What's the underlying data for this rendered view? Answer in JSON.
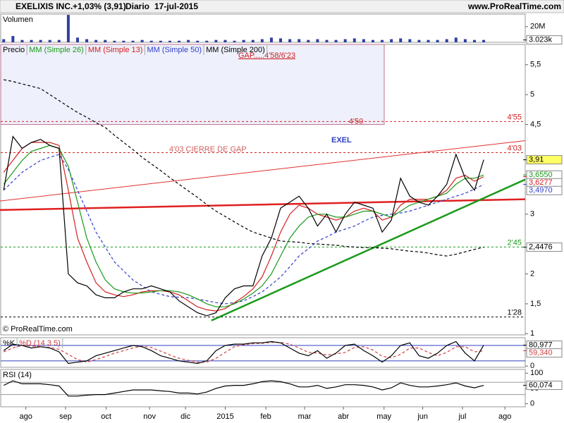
{
  "header": {
    "title": "EXELIXIS INC.",
    "change": "+1,03% (3,91)",
    "period": "Diario",
    "date": "17-jul-2015",
    "site": "www.ProRealTime.com"
  },
  "chart_data": [
    {
      "type": "bar",
      "title": "Volumen",
      "color": "#3040a0",
      "xlim": [
        -0.4,
        56.5
      ],
      "ylim": [
        0,
        36000000
      ],
      "yticks": [
        {
          "value": 20000000,
          "label": "20M"
        }
      ],
      "values": [
        4000000,
        8000000,
        3000000,
        3000000,
        3000000,
        3000000,
        3000000,
        35000000,
        6000000,
        4000000,
        3000000,
        3000000,
        2000000,
        2000000,
        2000000,
        3000000,
        2000000,
        2000000,
        2000000,
        2000000,
        3000000,
        2000000,
        2000000,
        3000000,
        3000000,
        2000000,
        3000000,
        3000000,
        4000000,
        6000000,
        5000000,
        4000000,
        4000000,
        3000000,
        4000000,
        3000000,
        3000000,
        4000000,
        5000000,
        4000000,
        3000000,
        3000000,
        4000000,
        5000000,
        4000000,
        3000000,
        3000000,
        3000000,
        4000000,
        6000000,
        4000000,
        3000000,
        3023000
      ],
      "tags": [
        {
          "value": 3023000,
          "label": "3.023k",
          "color": "#ffffff",
          "text_color": "#000000"
        }
      ]
    },
    {
      "type": "line",
      "xlim": [
        -0.4,
        56.5
      ],
      "ylim": [
        0.98,
        5.84
      ],
      "yticks": [
        1,
        {
          "value": 1.5,
          "label": "1,5"
        },
        2,
        3,
        {
          "value": 4.5,
          "label": "4,5"
        },
        5,
        {
          "value": 5.5,
          "label": "5,5"
        }
      ],
      "series": [
        {
          "name": "Precio",
          "color": "#000000",
          "values": [
            3.4,
            4.3,
            4.1,
            4.2,
            4.25,
            4.15,
            4.1,
            2.0,
            1.85,
            1.8,
            1.65,
            1.6,
            1.6,
            1.7,
            1.75,
            1.75,
            1.8,
            1.75,
            1.7,
            1.55,
            1.45,
            1.35,
            1.3,
            1.35,
            1.6,
            1.75,
            1.8,
            1.8,
            2.3,
            2.6,
            3.1,
            3.2,
            3.3,
            3.1,
            2.8,
            3.0,
            2.7,
            3.0,
            3.2,
            3.15,
            3.1,
            2.7,
            2.9,
            3.6,
            3.3,
            3.2,
            3.15,
            3.3,
            3.5,
            4.0,
            3.6,
            3.4,
            3.91
          ]
        },
        {
          "name": "MM (Simple 26)",
          "color": "#1a9a1a",
          "values": [
            3.5,
            3.7,
            3.9,
            4.05,
            4.1,
            4.15,
            4.1,
            3.8,
            3.2,
            2.6,
            2.2,
            1.9,
            1.75,
            1.7,
            1.68,
            1.68,
            1.7,
            1.72,
            1.72,
            1.7,
            1.65,
            1.58,
            1.5,
            1.45,
            1.45,
            1.5,
            1.58,
            1.68,
            1.8,
            2.0,
            2.3,
            2.6,
            2.8,
            2.95,
            3.0,
            3.0,
            2.95,
            2.95,
            3.0,
            3.05,
            3.05,
            3.0,
            2.95,
            3.05,
            3.15,
            3.2,
            3.25,
            3.3,
            3.35,
            3.5,
            3.6,
            3.6,
            3.655
          ]
        },
        {
          "name": "MM (Simple 13)",
          "color": "#d42020",
          "values": [
            3.7,
            3.9,
            4.1,
            4.2,
            4.2,
            4.2,
            4.15,
            3.4,
            2.6,
            2.2,
            1.85,
            1.7,
            1.65,
            1.62,
            1.65,
            1.7,
            1.72,
            1.72,
            1.7,
            1.65,
            1.55,
            1.45,
            1.4,
            1.38,
            1.42,
            1.52,
            1.62,
            1.75,
            1.95,
            2.3,
            2.7,
            3.0,
            3.15,
            3.1,
            3.0,
            2.95,
            2.9,
            2.95,
            3.05,
            3.1,
            3.05,
            2.9,
            2.95,
            3.15,
            3.25,
            3.25,
            3.25,
            3.3,
            3.4,
            3.6,
            3.65,
            3.55,
            3.6277
          ]
        },
        {
          "name": "MM (Simple 50)",
          "color": "#3340c8",
          "dash": true,
          "values": [
            3.4,
            3.55,
            3.7,
            3.8,
            3.9,
            3.95,
            4.0,
            3.75,
            3.4,
            3.05,
            2.7,
            2.45,
            2.2,
            2.05,
            1.9,
            1.8,
            1.7,
            1.66,
            1.62,
            1.61,
            1.6,
            1.58,
            1.55,
            1.52,
            1.5,
            1.52,
            1.55,
            1.62,
            1.7,
            1.82,
            1.95,
            2.12,
            2.3,
            2.42,
            2.55,
            2.62,
            2.7,
            2.75,
            2.8,
            2.88,
            2.95,
            2.98,
            3.0,
            3.02,
            3.05,
            3.1,
            3.15,
            3.2,
            3.25,
            3.3,
            3.35,
            3.42,
            3.497
          ]
        },
        {
          "name": "MM (Simple 200)",
          "color": "#000000",
          "dash": true,
          "values": [
            5.25,
            5.22,
            5.18,
            5.14,
            5.1,
            5.0,
            4.9,
            4.8,
            4.7,
            4.62,
            4.53,
            4.45,
            4.32,
            4.2,
            4.08,
            3.95,
            3.84,
            3.73,
            3.61,
            3.5,
            3.39,
            3.28,
            3.16,
            3.05,
            2.96,
            2.87,
            2.78,
            2.7,
            2.65,
            2.6,
            2.55,
            2.54,
            2.53,
            2.51,
            2.5,
            2.49,
            2.48,
            2.46,
            2.45,
            2.44,
            2.44,
            2.43,
            2.42,
            2.4,
            2.38,
            2.37,
            2.35,
            2.32,
            2.3,
            2.33,
            2.37,
            2.41,
            2.4476
          ]
        }
      ],
      "gap": {
        "label": "GAP.....4'58/6'23",
        "bottom": 4.5,
        "bottom_label": "4'50"
      },
      "levels": [
        {
          "value": 4.55,
          "label": "4'55",
          "color": "#d02020"
        },
        {
          "value": 4.03,
          "label": "4'03",
          "color": "#d02020"
        },
        {
          "value": 2.45,
          "label": "2'45",
          "color": "#1a9a1a"
        },
        {
          "value": 1.28,
          "label": "1'28",
          "color": "#000000"
        }
      ],
      "trendlines": [
        {
          "color": "#e03030",
          "width": 1,
          "x": [
            -0.4,
            56.5
          ],
          "y": [
            3.22,
            4.23
          ]
        },
        {
          "color": "#e02020",
          "width": 2.5,
          "x": [
            -0.4,
            56.5
          ],
          "y": [
            3.07,
            3.25
          ]
        },
        {
          "color": "#1a9a1a",
          "width": 2.5,
          "x": [
            22.5,
            56.5
          ],
          "y": [
            1.22,
            3.58
          ]
        }
      ],
      "annotations": [
        "4'03 CIERRE DE GAP",
        "EXEL",
        "© ProRealTime.com"
      ],
      "tags": [
        {
          "value": 3.91,
          "label": "3,91",
          "color": "#ffff66",
          "text_color": "#000000"
        },
        {
          "value": 3.655,
          "label": "3,6550",
          "color": "#ffffff",
          "text_color": "#1a9a1a"
        },
        {
          "value": 3.6277,
          "label": "3,6277",
          "color": "#ffffff",
          "text_color": "#d42020"
        },
        {
          "value": 3.497,
          "label": "3,4970",
          "color": "#ffffff",
          "text_color": "#3340c8"
        },
        {
          "value": 2.4476,
          "label": "2,4476",
          "color": "#ffffff",
          "text_color": "#000000"
        }
      ]
    },
    {
      "type": "line",
      "xlim": [
        -0.4,
        56.5
      ],
      "ylim": [
        -5,
        110
      ],
      "yticks": [
        0
      ],
      "hlines": [
        20,
        80
      ],
      "hline_color": "#3040c0",
      "series": [
        {
          "name": "%K",
          "color": "#000000",
          "values": [
            60,
            85,
            80,
            70,
            75,
            70,
            55,
            10,
            15,
            20,
            40,
            50,
            60,
            70,
            80,
            75,
            60,
            40,
            30,
            20,
            15,
            10,
            20,
            60,
            80,
            85,
            85,
            90,
            90,
            95,
            90,
            70,
            50,
            40,
            60,
            30,
            50,
            80,
            85,
            60,
            40,
            15,
            40,
            80,
            90,
            40,
            30,
            50,
            80,
            95,
            50,
            20,
            80.977
          ]
        },
        {
          "name": "%D (14 3 5)",
          "color": "#d04040",
          "dash": true,
          "values": [
            55,
            70,
            80,
            78,
            75,
            72,
            65,
            45,
            25,
            15,
            25,
            37,
            50,
            60,
            70,
            77,
            72,
            58,
            43,
            30,
            22,
            15,
            15,
            30,
            53,
            75,
            83,
            87,
            88,
            92,
            92,
            85,
            70,
            53,
            50,
            43,
            47,
            53,
            72,
            75,
            62,
            38,
            32,
            45,
            70,
            70,
            53,
            40,
            53,
            75,
            75,
            55,
            59.34
          ]
        }
      ],
      "tags": [
        {
          "value": 80.977,
          "label": "80,977",
          "color": "#ffffff",
          "text_color": "#000000"
        },
        {
          "value": 59.34,
          "label": "59,340",
          "color": "#ffffff",
          "text_color": "#d04040"
        }
      ]
    },
    {
      "type": "line",
      "title": "RSI (14)",
      "xlim": [
        -0.4,
        56.5
      ],
      "ylim": [
        -10,
        112
      ],
      "yticks": [
        0,
        50,
        100
      ],
      "hlines": [
        30,
        70
      ],
      "hline_color": "#999999",
      "series": [
        {
          "name": null,
          "color": "#000000",
          "values": [
            60,
            75,
            65,
            65,
            65,
            62,
            58,
            25,
            25,
            28,
            30,
            30,
            35,
            40,
            45,
            45,
            45,
            42,
            40,
            35,
            35,
            32,
            38,
            50,
            58,
            60,
            60,
            65,
            72,
            75,
            72,
            65,
            55,
            55,
            60,
            50,
            55,
            62,
            62,
            60,
            55,
            45,
            52,
            68,
            60,
            55,
            55,
            58,
            62,
            68,
            58,
            52,
            60.074
          ]
        }
      ],
      "tags": [
        {
          "value": 60.074,
          "label": "60,074",
          "color": "#ffffff",
          "text_color": "#000000"
        }
      ],
      "xticks": [
        {
          "value": 2.4,
          "label": "ago"
        },
        {
          "value": 6.7,
          "label": "sep"
        },
        {
          "value": 11.1,
          "label": "oct"
        },
        {
          "value": 15.8,
          "label": "nov"
        },
        {
          "value": 19.7,
          "label": "dic"
        },
        {
          "value": 24.0,
          "label": "2015"
        },
        {
          "value": 28.4,
          "label": "feb"
        },
        {
          "value": 32.6,
          "label": "mar"
        },
        {
          "value": 36.8,
          "label": "abr"
        },
        {
          "value": 41.2,
          "label": "may"
        },
        {
          "value": 45.4,
          "label": "jun"
        },
        {
          "value": 49.7,
          "label": "jul"
        },
        {
          "value": 54.3,
          "label": "ago"
        }
      ]
    }
  ]
}
